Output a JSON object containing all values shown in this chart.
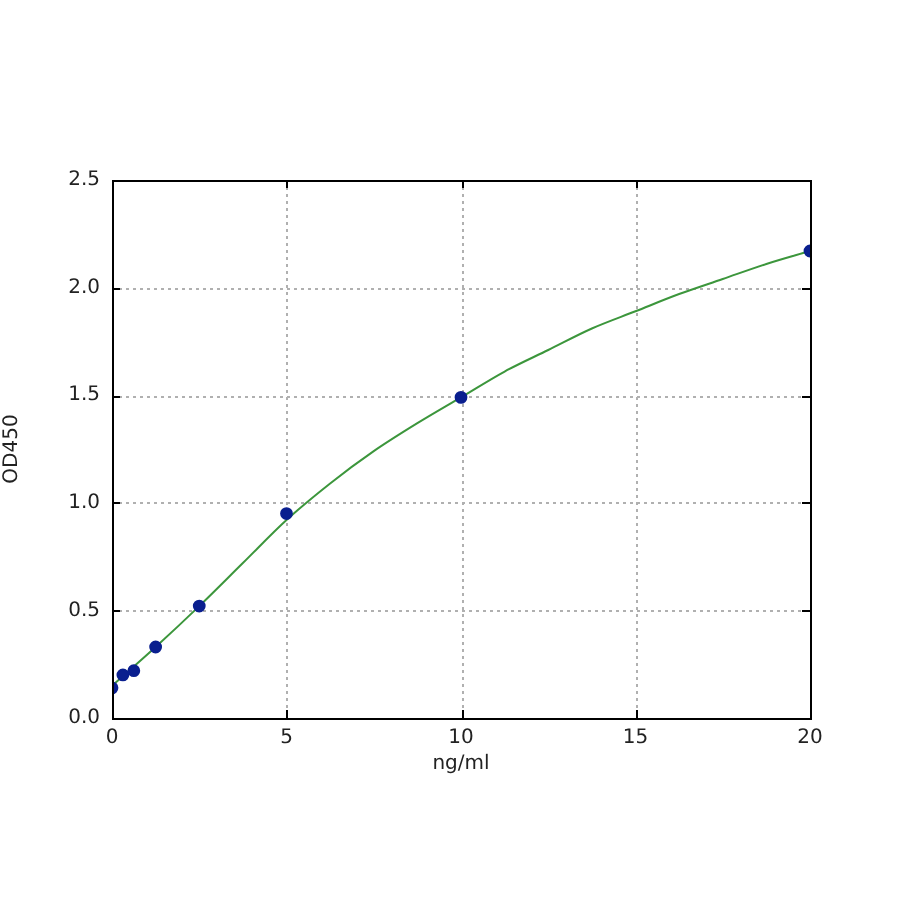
{
  "chart_data": {
    "type": "scatter",
    "xlabel": "ng/ml",
    "ylabel": "OD450",
    "xlim": [
      0,
      20
    ],
    "ylim": [
      0,
      2.5
    ],
    "xticks": [
      0,
      5,
      10,
      15,
      20
    ],
    "yticks": [
      {
        "value": 0,
        "label": "0.0"
      },
      {
        "value": 0.5,
        "label": "0.5"
      },
      {
        "value": 1,
        "label": "1.0"
      },
      {
        "value": 1.5,
        "label": "1.5"
      },
      {
        "value": 2,
        "label": "2.0"
      },
      {
        "value": 2.5,
        "label": "2.5"
      }
    ],
    "grid": true,
    "legend": false,
    "marker": "circle",
    "series": [
      {
        "type": "line",
        "color": "#3c963c",
        "marker": "none",
        "x": [
          0,
          1.25,
          2.5,
          3.75,
          5,
          6.25,
          7.5,
          8.75,
          10,
          11.25,
          12.5,
          13.75,
          15,
          16.25,
          17.5,
          18.75,
          20
        ],
        "values": [
          0.15,
          0.33,
          0.52,
          0.72,
          0.92,
          1.09,
          1.24,
          1.37,
          1.49,
          1.61,
          1.71,
          1.81,
          1.89,
          1.97,
          2.04,
          2.11,
          2.17
        ]
      },
      {
        "type": "scatter",
        "color": "#0a1f8f",
        "x": [
          0,
          0.3125,
          0.625,
          1.25,
          2.5,
          5,
          10,
          20
        ],
        "values": [
          0.14,
          0.2,
          0.22,
          0.33,
          0.52,
          0.95,
          1.49,
          2.17
        ]
      }
    ]
  }
}
